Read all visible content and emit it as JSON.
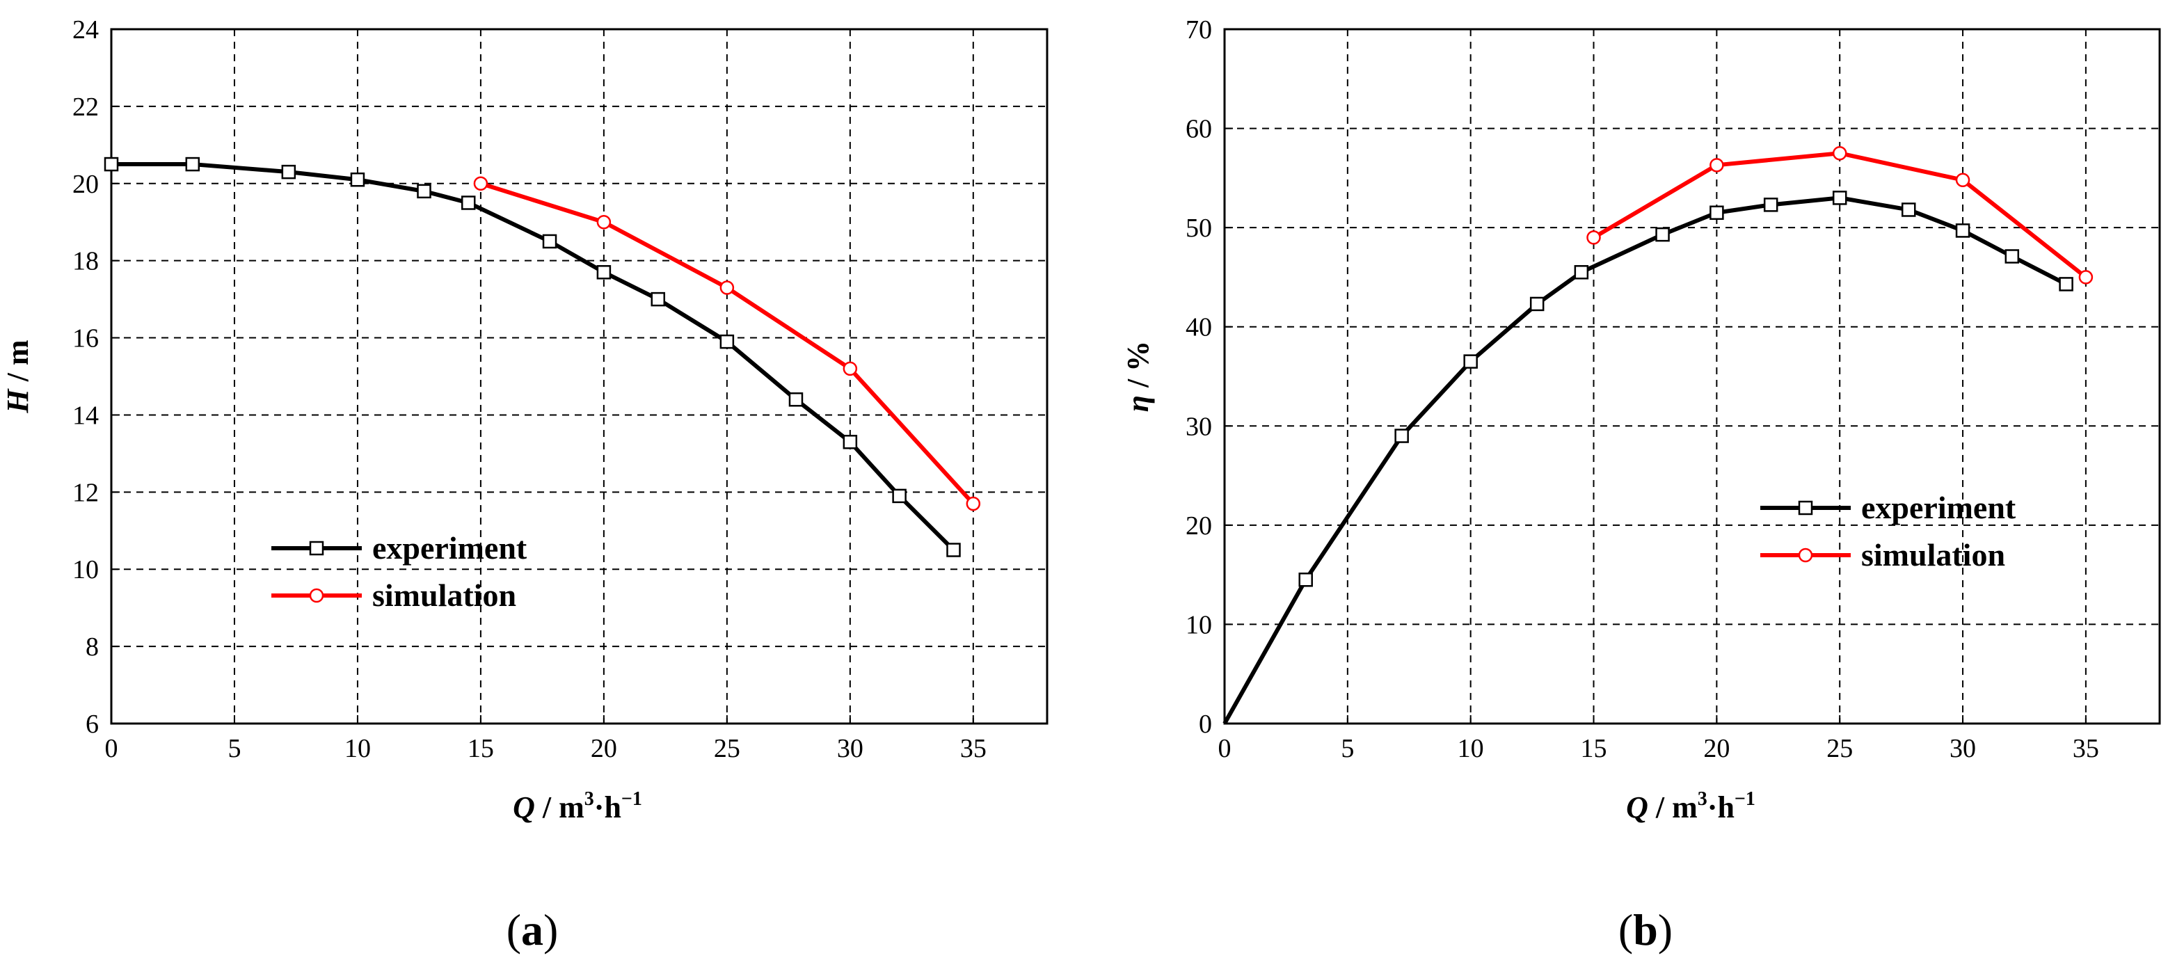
{
  "chart_data": [
    {
      "type": "line",
      "panel_label": "a",
      "xlabel": {
        "var": "Q",
        "unit": "m",
        "sup1": "3",
        "mid": "·h",
        "sup2": "−1"
      },
      "ylabel": {
        "var": "H",
        "unit": "m"
      },
      "xlim": [
        0,
        38
      ],
      "ylim": [
        6,
        24
      ],
      "xticks": [
        0,
        5,
        10,
        15,
        20,
        25,
        30,
        35
      ],
      "yticks": [
        6,
        8,
        10,
        12,
        14,
        16,
        18,
        20,
        22,
        24
      ],
      "grid": true,
      "legend_position": "lower-left",
      "series": [
        {
          "name": "experiment",
          "color": "#000000",
          "marker": "square",
          "x": [
            0,
            3.3,
            7.2,
            10,
            12.7,
            14.5,
            17.8,
            20,
            22.2,
            25,
            27.8,
            30,
            32,
            34.2
          ],
          "y": [
            20.5,
            20.5,
            20.3,
            20.1,
            19.8,
            19.5,
            18.5,
            17.7,
            17.0,
            15.9,
            14.4,
            13.3,
            11.9,
            10.5
          ],
          "markers_x": [
            0,
            3.3,
            7.2,
            10,
            12.7,
            14.5,
            17.8,
            20,
            22.2,
            25,
            27.8,
            30,
            32,
            34.2
          ]
        },
        {
          "name": "simulation",
          "color": "#ff0000",
          "marker": "circle",
          "x": [
            15,
            20,
            25,
            30,
            35
          ],
          "y": [
            20.0,
            19.0,
            17.3,
            15.2,
            11.7
          ],
          "markers_x": [
            15,
            20,
            25,
            30,
            35
          ]
        }
      ]
    },
    {
      "type": "line",
      "panel_label": "b",
      "xlabel": {
        "var": "Q",
        "unit": "m",
        "sup1": "3",
        "mid": "·h",
        "sup2": "−1"
      },
      "ylabel": {
        "var": "η",
        "unit": "%"
      },
      "xlim": [
        0,
        38
      ],
      "ylim": [
        0,
        70
      ],
      "xticks": [
        0,
        5,
        10,
        15,
        20,
        25,
        30,
        35
      ],
      "yticks": [
        0,
        10,
        20,
        30,
        40,
        50,
        60,
        70
      ],
      "grid": true,
      "legend_position": "center-right",
      "series": [
        {
          "name": "experiment",
          "color": "#000000",
          "marker": "square",
          "x": [
            0,
            3.3,
            7.2,
            10,
            12.7,
            14.5,
            17.8,
            20,
            22.2,
            25,
            27.8,
            30,
            32,
            34.2
          ],
          "y": [
            0,
            14.5,
            29.0,
            36.5,
            42.3,
            45.5,
            49.3,
            51.5,
            52.3,
            53.0,
            51.8,
            49.7,
            47.1,
            44.3
          ],
          "markers_x": [
            3.3,
            7.2,
            10,
            12.7,
            14.5,
            17.8,
            20,
            22.2,
            25,
            27.8,
            30,
            32,
            34.2
          ]
        },
        {
          "name": "simulation",
          "color": "#ff0000",
          "marker": "circle",
          "x": [
            15,
            20,
            25,
            30,
            35
          ],
          "y": [
            49.0,
            56.3,
            57.5,
            54.8,
            45.0
          ],
          "markers_x": [
            15,
            20,
            25,
            30,
            35
          ]
        }
      ]
    }
  ]
}
